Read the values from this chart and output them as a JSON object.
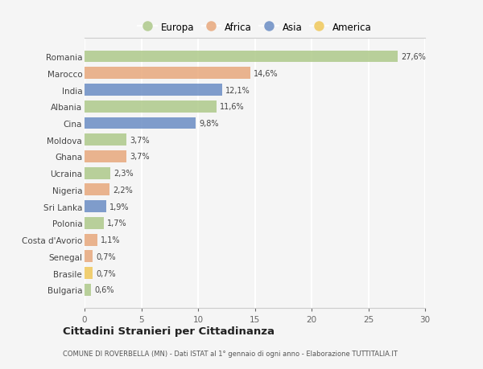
{
  "countries": [
    "Romania",
    "Marocco",
    "India",
    "Albania",
    "Cina",
    "Moldova",
    "Ghana",
    "Ucraina",
    "Nigeria",
    "Sri Lanka",
    "Polonia",
    "Costa d'Avorio",
    "Senegal",
    "Brasile",
    "Bulgaria"
  ],
  "values": [
    27.6,
    14.6,
    12.1,
    11.6,
    9.8,
    3.7,
    3.7,
    2.3,
    2.2,
    1.9,
    1.7,
    1.1,
    0.7,
    0.7,
    0.6
  ],
  "labels": [
    "27,6%",
    "14,6%",
    "12,1%",
    "11,6%",
    "9,8%",
    "3,7%",
    "3,7%",
    "2,3%",
    "2,2%",
    "1,9%",
    "1,7%",
    "1,1%",
    "0,7%",
    "0,7%",
    "0,6%"
  ],
  "continents": [
    "Europa",
    "Africa",
    "Asia",
    "Europa",
    "Asia",
    "Europa",
    "Africa",
    "Europa",
    "Africa",
    "Asia",
    "Europa",
    "Africa",
    "Africa",
    "America",
    "Europa"
  ],
  "colors": {
    "Europa": "#aec98a",
    "Africa": "#e8a87c",
    "Asia": "#6b8dc4",
    "America": "#f0c85a"
  },
  "legend_order": [
    "Europa",
    "Africa",
    "Asia",
    "America"
  ],
  "xlim": [
    0,
    30
  ],
  "xticks": [
    0,
    5,
    10,
    15,
    20,
    25,
    30
  ],
  "title": "Cittadini Stranieri per Cittadinanza",
  "subtitle": "COMUNE DI ROVERBELLA (MN) - Dati ISTAT al 1° gennaio di ogni anno - Elaborazione TUTTITALIA.IT",
  "bg_color": "#f5f5f5",
  "grid_color": "#ffffff",
  "bar_height": 0.72
}
